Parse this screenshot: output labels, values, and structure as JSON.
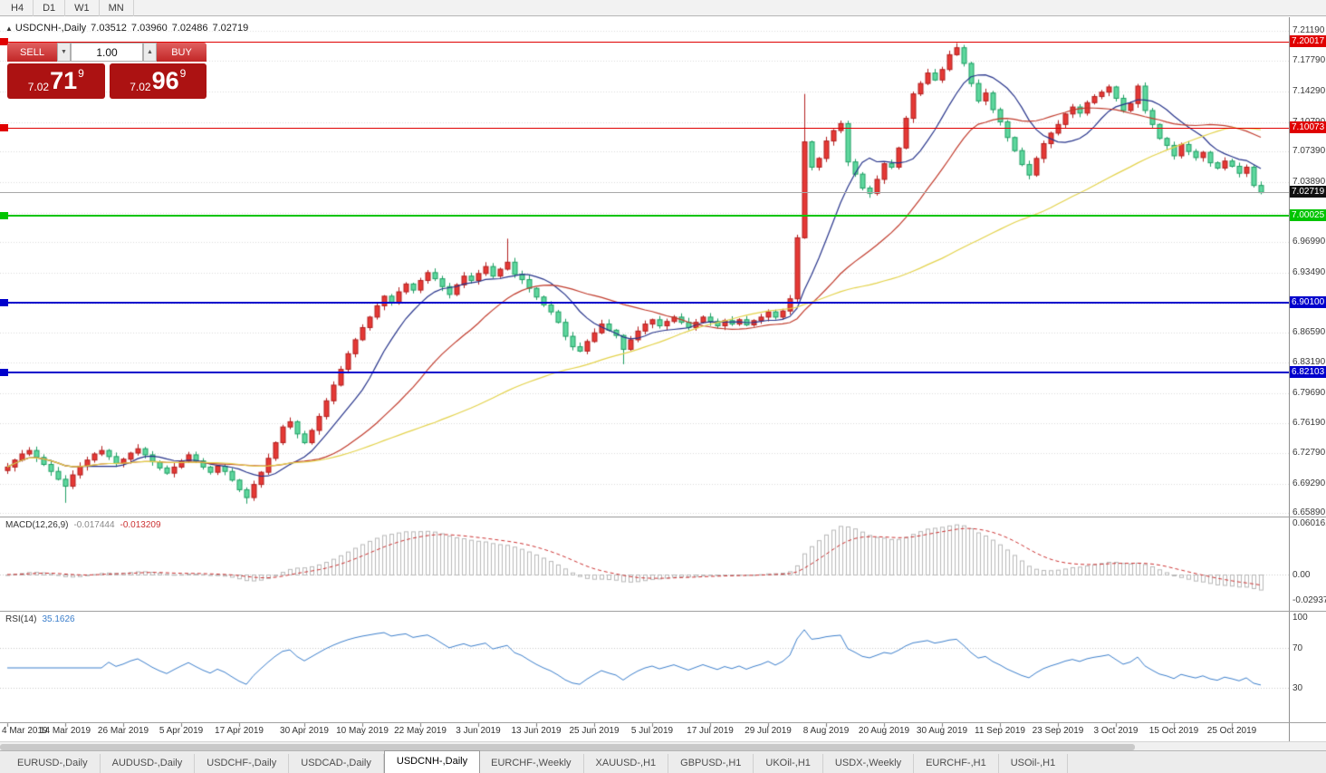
{
  "toolbar": {
    "timeframes": [
      "H4",
      "D1",
      "W1",
      "MN"
    ]
  },
  "chart_header": {
    "collapse_icon": "▲",
    "symbol": "USDCNH-,Daily",
    "open": "7.03512",
    "high": "7.03960",
    "low": "7.02486",
    "close": "7.02719"
  },
  "one_click": {
    "sell_label": "SELL",
    "buy_label": "BUY",
    "volume": "1.00",
    "spin_down_icon": "▼",
    "spin_up_icon": "▲",
    "sell_price": {
      "big": "7.02",
      "pips": "71",
      "pipette": "9"
    },
    "buy_price": {
      "big": "7.02",
      "pips": "96",
      "pipette": "9"
    }
  },
  "price_axis": {
    "labels": [
      {
        "text": "7.21190",
        "price": 7.2119
      },
      {
        "text": "7.17790",
        "price": 7.1779
      },
      {
        "text": "7.14290",
        "price": 7.1429
      },
      {
        "text": "7.10790",
        "price": 7.1079
      },
      {
        "text": "7.07390",
        "price": 7.0739
      },
      {
        "text": "7.03890",
        "price": 7.0389
      },
      {
        "text": "6.96990",
        "price": 6.9699
      },
      {
        "text": "6.93490",
        "price": 6.9349
      },
      {
        "text": "6.86590",
        "price": 6.8659
      },
      {
        "text": "6.83190",
        "price": 6.8319
      },
      {
        "text": "6.79690",
        "price": 6.7969
      },
      {
        "text": "6.76190",
        "price": 6.7619
      },
      {
        "text": "6.72790",
        "price": 6.7279
      },
      {
        "text": "6.69290",
        "price": 6.6929
      },
      {
        "text": "6.65890",
        "price": 6.6589
      }
    ]
  },
  "hlines": [
    {
      "label": "7.20017",
      "price": 7.20017,
      "color": "#e00000",
      "thickness": 1
    },
    {
      "label": "7.10073",
      "price": 7.10073,
      "color": "#e00000",
      "thickness": 1
    },
    {
      "label": "7.00025",
      "price": 7.00025,
      "color": "#00c400",
      "thickness": 2
    },
    {
      "label": "6.90100",
      "price": 6.901,
      "color": "#0000cc",
      "thickness": 2
    },
    {
      "label": "6.82103",
      "price": 6.82103,
      "color": "#0000cc",
      "thickness": 2
    }
  ],
  "current_price": {
    "text": "7.02719",
    "price": 7.02719,
    "bg": "#101010",
    "line_color": "#a8a8a8"
  },
  "indicators": {
    "macd": {
      "name": "MACD(12,26,9)",
      "value_main": "-0.017444",
      "value_signal": "-0.013209",
      "axis": [
        {
          "text": "0.060161",
          "v": 0.060161
        },
        {
          "text": "0.00",
          "v": 0
        },
        {
          "text": "-0.029378",
          "v": -0.029378
        }
      ],
      "hist_color": "#b8b8b8",
      "signal_color": "#cc3333"
    },
    "rsi": {
      "name": "RSI(14)",
      "value": "35.1626",
      "axis": [
        {
          "text": "100",
          "v": 100
        },
        {
          "text": "70",
          "v": 70
        },
        {
          "text": "30",
          "v": 30
        }
      ],
      "levels": [
        70,
        30
      ],
      "line_color": "#3b7ecb"
    }
  },
  "time_axis": [
    {
      "text": "4 Mar 2019",
      "i": 0
    },
    {
      "text": "14 Mar 2019",
      "i": 8
    },
    {
      "text": "26 Mar 2019",
      "i": 16
    },
    {
      "text": "5 Apr 2019",
      "i": 24
    },
    {
      "text": "17 Apr 2019",
      "i": 32
    },
    {
      "text": "30 Apr 2019",
      "i": 41
    },
    {
      "text": "10 May 2019",
      "i": 49
    },
    {
      "text": "22 May 2019",
      "i": 57
    },
    {
      "text": "3 Jun 2019",
      "i": 65
    },
    {
      "text": "13 Jun 2019",
      "i": 73
    },
    {
      "text": "25 Jun 2019",
      "i": 81
    },
    {
      "text": "5 Jul 2019",
      "i": 89
    },
    {
      "text": "17 Jul 2019",
      "i": 97
    },
    {
      "text": "29 Jul 2019",
      "i": 105
    },
    {
      "text": "8 Aug 2019",
      "i": 113
    },
    {
      "text": "20 Aug 2019",
      "i": 121
    },
    {
      "text": "30 Aug 2019",
      "i": 129
    },
    {
      "text": "11 Sep 2019",
      "i": 137
    },
    {
      "text": "23 Sep 2019",
      "i": 145
    },
    {
      "text": "3 Oct 2019",
      "i": 153
    },
    {
      "text": "15 Oct 2019",
      "i": 161
    },
    {
      "text": "25 Oct 2019",
      "i": 169
    }
  ],
  "tabs": {
    "active_index": 4,
    "items": [
      "EURUSD-,Daily",
      "AUDUSD-,Daily",
      "USDCHF-,Daily",
      "USDCAD-,Daily",
      "USDCNH-,Daily",
      "EURCHF-,Weekly",
      "XAUUSD-,H1",
      "GBPUSD-,H1",
      "UKOil-,H1",
      "USDX-,Weekly",
      "EURCHF-,H1",
      "USOil-,H1"
    ]
  },
  "chart_data": {
    "type": "candlestick",
    "symbol": "USDCNH-",
    "period": "Daily",
    "up_color": "#e53935",
    "up_border": "#b21e1e",
    "down_color": "#5fd79e",
    "down_border": "#1e9e63",
    "ma": [
      {
        "period": 10,
        "color": "#27348b"
      },
      {
        "period": 25,
        "color": "#c03a2b"
      },
      {
        "period": 60,
        "color": "#e3d24b"
      }
    ],
    "gridline_prices": [
      7.2119,
      7.1779,
      7.1429,
      7.1079,
      7.0739,
      7.0389,
      7.0039,
      6.9699,
      6.9349,
      6.8999,
      6.8659,
      6.8319,
      6.7969,
      6.7619,
      6.7279,
      6.6929,
      6.6589
    ],
    "closes": [
      6.712,
      6.72,
      6.727,
      6.731,
      6.723,
      6.715,
      6.707,
      6.698,
      6.69,
      6.703,
      6.713,
      6.72,
      6.727,
      6.731,
      6.724,
      6.716,
      6.721,
      6.728,
      6.733,
      6.726,
      6.718,
      6.711,
      6.705,
      6.712,
      6.719,
      6.726,
      6.719,
      6.712,
      6.706,
      6.713,
      6.707,
      6.697,
      6.686,
      6.677,
      6.692,
      6.706,
      6.722,
      6.74,
      6.758,
      6.764,
      6.75,
      6.74,
      6.754,
      6.77,
      6.788,
      6.806,
      6.824,
      6.842,
      6.858,
      6.872,
      6.884,
      6.897,
      6.908,
      6.901,
      6.913,
      6.922,
      6.915,
      6.926,
      6.935,
      6.928,
      6.919,
      6.91,
      6.921,
      6.931,
      6.926,
      6.934,
      6.942,
      6.931,
      6.939,
      6.947,
      6.933,
      6.927,
      6.917,
      6.907,
      6.898,
      6.89,
      6.878,
      6.862,
      6.85,
      6.845,
      6.856,
      6.866,
      6.876,
      6.869,
      6.863,
      6.847,
      6.858,
      6.868,
      6.876,
      6.881,
      6.874,
      6.879,
      6.884,
      6.878,
      6.872,
      6.878,
      6.884,
      6.879,
      6.874,
      6.88,
      6.876,
      6.881,
      6.875,
      6.88,
      6.884,
      6.89,
      6.884,
      6.891,
      6.905,
      6.975,
      7.085,
      7.056,
      7.066,
      7.086,
      7.098,
      7.106,
      7.062,
      7.048,
      7.032,
      7.026,
      7.042,
      7.06,
      7.056,
      7.078,
      7.112,
      7.14,
      7.152,
      7.164,
      7.156,
      7.168,
      7.185,
      7.193,
      7.175,
      7.152,
      7.132,
      7.141,
      7.122,
      7.108,
      7.09,
      7.075,
      7.059,
      7.047,
      7.066,
      7.083,
      7.095,
      7.105,
      7.117,
      7.125,
      7.118,
      7.13,
      7.137,
      7.142,
      7.148,
      7.135,
      7.121,
      7.129,
      7.149,
      7.121,
      7.105,
      7.089,
      7.081,
      7.069,
      7.082,
      7.074,
      7.067,
      7.073,
      7.061,
      7.055,
      7.063,
      7.057,
      7.049,
      7.056,
      7.035,
      7.027
    ],
    "wick_overrides": {
      "8": {
        "l": 6.671
      },
      "33": {
        "l": 6.67
      },
      "69": {
        "h": 6.974
      },
      "85": {
        "l": 6.83
      },
      "110": {
        "h": 7.14
      },
      "131": {
        "h": 7.1985
      },
      "173": {
        "h": 7.0396,
        "l": 7.02486
      }
    }
  }
}
